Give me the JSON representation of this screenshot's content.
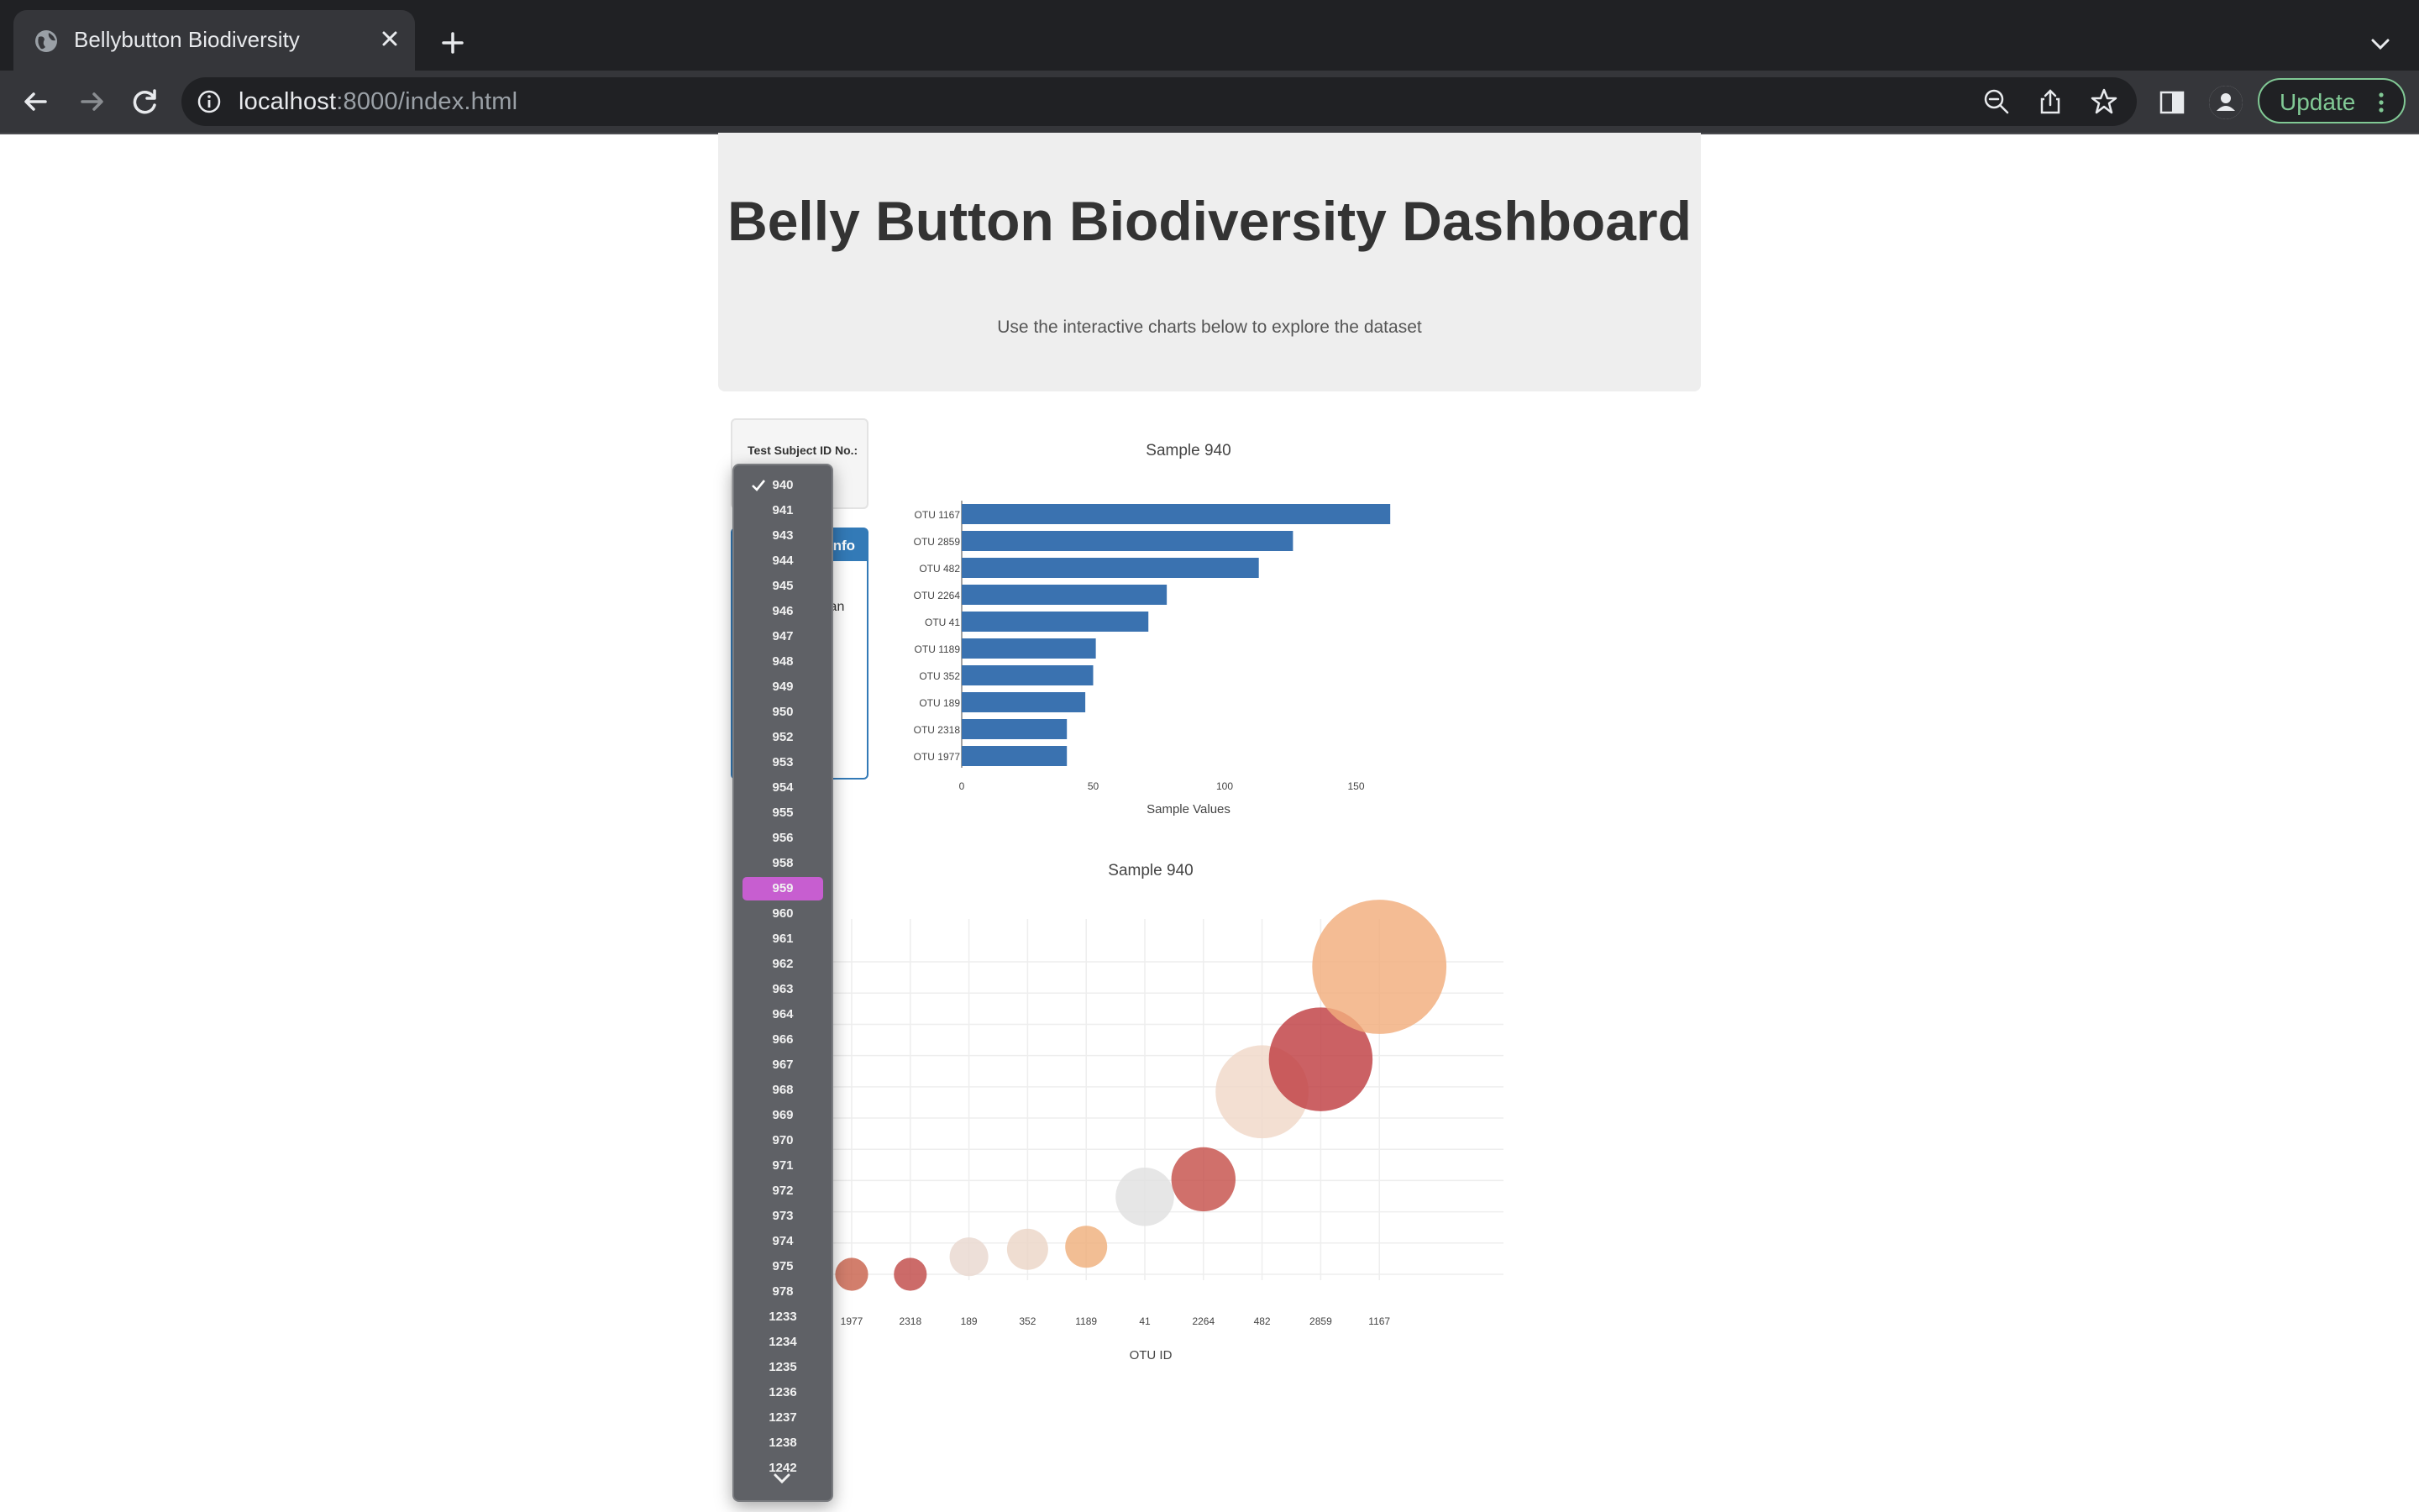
{
  "browser": {
    "tab_title": "Bellybutton Biodiversity",
    "url_host": "localhost",
    "url_rest": ":8000/index.html",
    "update_label": "Update"
  },
  "page": {
    "title": "Belly Button Biodiversity Dashboard",
    "subtitle": "Use the interactive charts below to explore the dataset",
    "select_label": "Test Subject ID No.:",
    "panel_title": "Info",
    "panel_partial_text": "sian"
  },
  "dropdown": {
    "selected": "940",
    "highlighted": "959",
    "options": [
      "940",
      "941",
      "943",
      "944",
      "945",
      "946",
      "947",
      "948",
      "949",
      "950",
      "952",
      "953",
      "954",
      "955",
      "956",
      "958",
      "959",
      "960",
      "961",
      "962",
      "963",
      "964",
      "966",
      "967",
      "968",
      "969",
      "970",
      "971",
      "972",
      "973",
      "974",
      "975",
      "978",
      "1233",
      "1234",
      "1235",
      "1236",
      "1237",
      "1238",
      "1242"
    ]
  },
  "bar_chart": {
    "title": "Sample 940",
    "xlabel": "Sample Values",
    "x_ticks": [
      "0",
      "50",
      "100",
      "150"
    ]
  },
  "bubble_chart": {
    "title": "Sample 940",
    "xlabel": "OTU ID"
  },
  "chart_data": [
    {
      "type": "bar",
      "orientation": "horizontal",
      "title": "Sample 940",
      "xlabel": "Sample Values",
      "ylabel": "",
      "categories": [
        "OTU 1167",
        "OTU 2859",
        "OTU 482",
        "OTU 2264",
        "OTU 41",
        "OTU 1189",
        "OTU 352",
        "OTU 189",
        "OTU 2318",
        "OTU 1977"
      ],
      "values": [
        163,
        126,
        113,
        78,
        71,
        51,
        50,
        47,
        40,
        40
      ],
      "xlim": [
        0,
        170
      ],
      "grid": false,
      "color": "#3a72b0"
    },
    {
      "type": "scatter",
      "subtype": "bubble",
      "title": "Sample 940",
      "xlabel": "OTU ID",
      "ylabel": "",
      "categories": [
        "1977",
        "2318",
        "189",
        "352",
        "1189",
        "41",
        "2264",
        "482",
        "2859",
        "1167"
      ],
      "values": [
        40,
        40,
        47,
        50,
        51,
        71,
        78,
        113,
        126,
        163
      ],
      "colors": [
        "#c8614c",
        "#c14b48",
        "#e9d8cf",
        "#ecd6c7",
        "#efb07d",
        "#e0e0e0",
        "#c6514a",
        "#f0d8c8",
        "#bf3e42",
        "#f1ad7d"
      ],
      "grid": true
    }
  ]
}
